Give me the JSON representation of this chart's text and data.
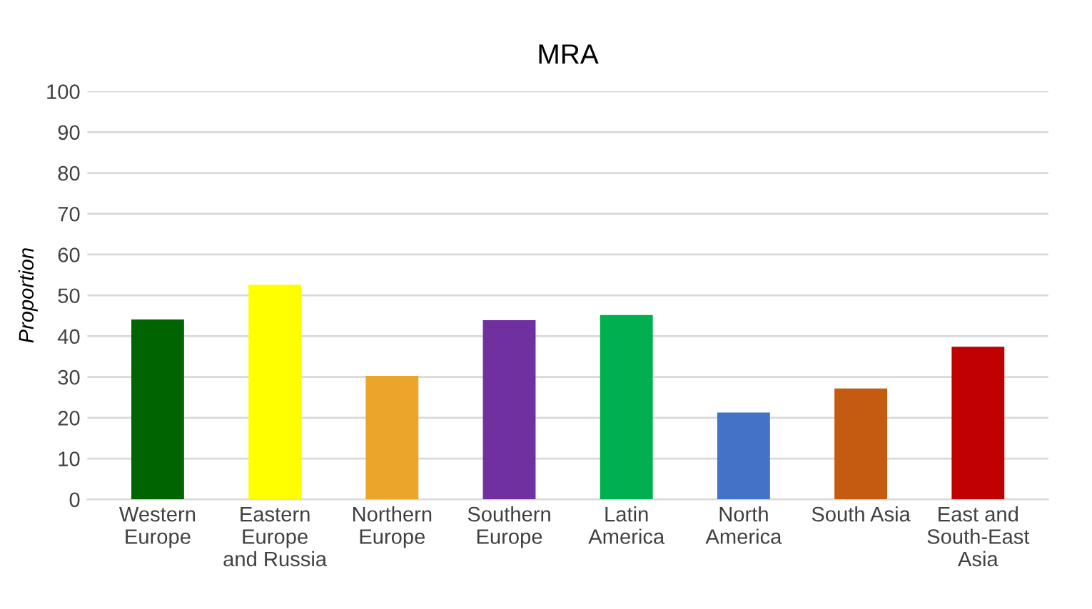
{
  "chart_data": {
    "type": "bar",
    "title": "MRA",
    "ylabel": "Proportion",
    "categories": [
      "Western\nEurope",
      "Eastern\nEurope\nand Russia",
      "Northern\nEurope",
      "Southern\nEurope",
      "Latin\nAmerica",
      "North\nAmerica",
      "South Asia",
      "East and\nSouth-East\nAsia"
    ],
    "values": [
      44.1,
      52.6,
      30.3,
      43.9,
      45.2,
      21.3,
      27.2,
      37.4
    ],
    "colors": [
      "#006400",
      "#ffff00",
      "#eba52a",
      "#7030a0",
      "#00b050",
      "#4472c4",
      "#c55a11",
      "#c00000"
    ],
    "ylim": [
      0,
      100
    ],
    "yticks": [
      0,
      10,
      20,
      30,
      40,
      50,
      60,
      70,
      80,
      90,
      100
    ],
    "grid": "y"
  }
}
